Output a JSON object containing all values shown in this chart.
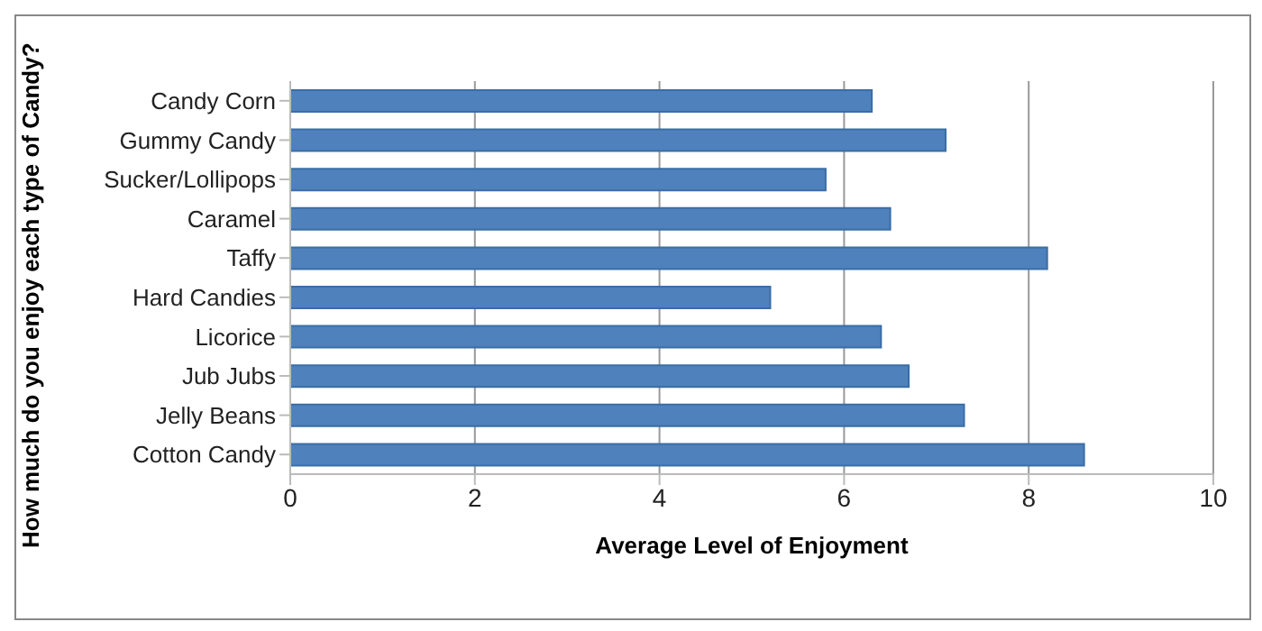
{
  "chart_data": {
    "type": "bar",
    "orientation": "horizontal",
    "xlabel": "Average Level of Enjoyment",
    "ylabel": "How much do you enjoy each type of Candy?",
    "categories": [
      "Candy Corn",
      "Gummy Candy",
      "Sucker/Lollipops",
      "Caramel",
      "Taffy",
      "Hard Candies",
      "Licorice",
      "Jub Jubs",
      "Jelly Beans",
      "Cotton Candy"
    ],
    "values": [
      6.3,
      7.1,
      5.8,
      6.5,
      8.2,
      5.2,
      6.4,
      6.7,
      7.3,
      8.6
    ],
    "color": "#4f81bd",
    "xlim": [
      0,
      10
    ],
    "xticks": [
      0,
      2,
      4,
      6,
      8,
      10
    ],
    "grid": "x"
  }
}
